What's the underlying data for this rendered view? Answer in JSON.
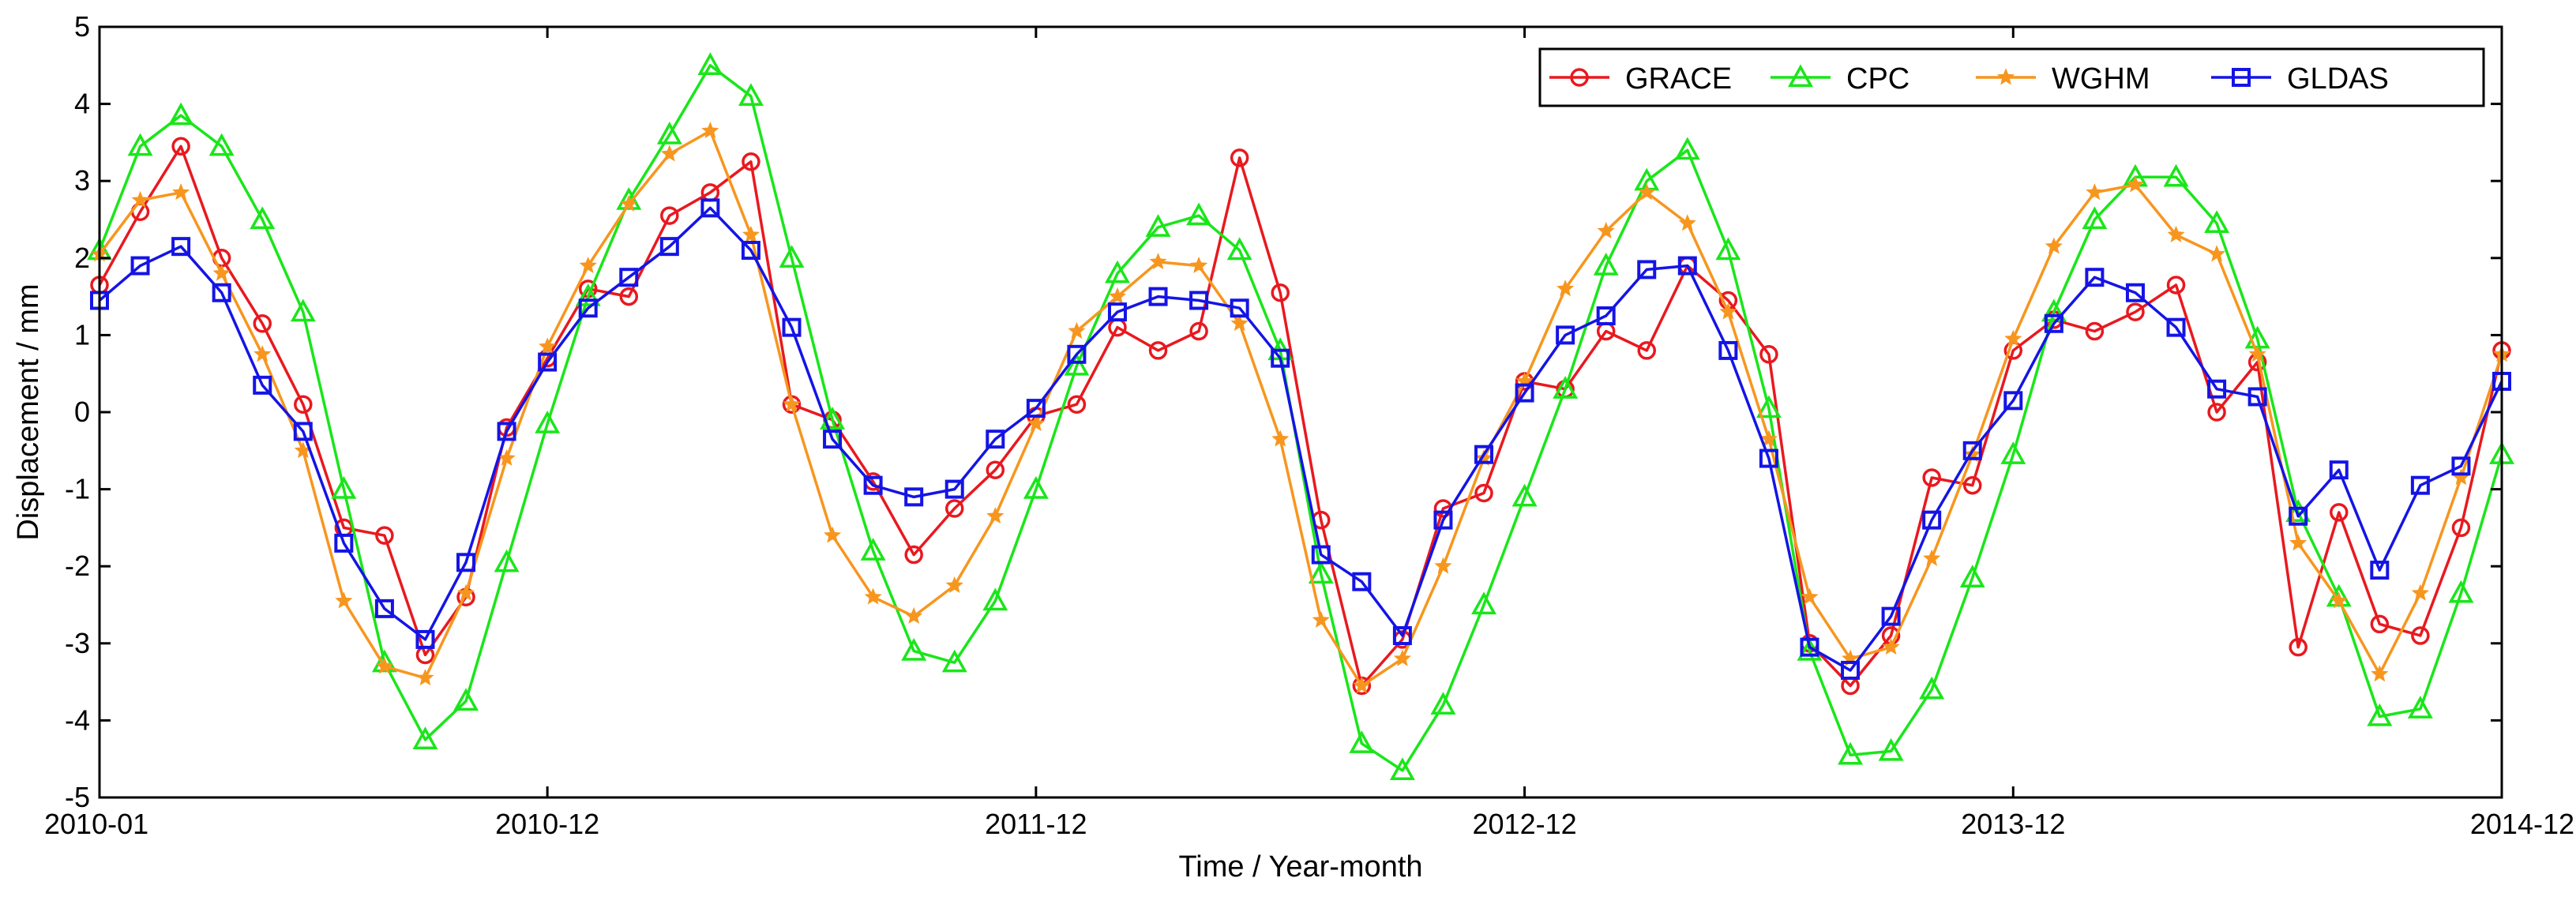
{
  "chart_data": {
    "type": "line",
    "title": "",
    "xlabel": "Time / Year-month",
    "ylabel": "Displacement / mm",
    "ylim": [
      -5,
      5
    ],
    "xlim": [
      0,
      59
    ],
    "grid": false,
    "legend_position": "top-right",
    "x_ticks": [
      {
        "index": 0,
        "label": "2010-01"
      },
      {
        "index": 11,
        "label": "2010-12"
      },
      {
        "index": 23,
        "label": "2011-12"
      },
      {
        "index": 35,
        "label": "2012-12"
      },
      {
        "index": 47,
        "label": "2013-12"
      },
      {
        "index": 59,
        "label": "2014-12"
      }
    ],
    "y_ticks": [
      -5,
      -4,
      -3,
      -2,
      -1,
      0,
      1,
      2,
      3,
      4,
      5
    ],
    "series": [
      {
        "name": "GRACE",
        "color": "#e8191f",
        "marker": "circle",
        "values": [
          1.65,
          2.6,
          3.45,
          2.0,
          1.15,
          0.1,
          -1.5,
          -1.6,
          -3.15,
          -2.4,
          -0.2,
          0.7,
          1.6,
          1.5,
          2.55,
          2.85,
          3.25,
          0.1,
          -0.1,
          -0.9,
          -1.85,
          -1.25,
          -0.75,
          -0.05,
          0.1,
          1.1,
          0.8,
          1.05,
          3.3,
          1.55,
          -1.4,
          -3.55,
          -2.95,
          -1.25,
          -1.05,
          0.4,
          0.3,
          1.05,
          0.8,
          1.9,
          1.45,
          0.75,
          -3.0,
          -3.55,
          -2.9,
          -0.85,
          -0.95,
          0.8,
          1.2,
          1.05,
          1.3,
          1.65,
          0.0,
          0.65,
          -3.05,
          -1.3,
          -2.75,
          -2.9,
          -1.5,
          0.8
        ]
      },
      {
        "name": "CPC",
        "color": "#19e619",
        "marker": "triangle",
        "values": [
          2.1,
          3.45,
          3.85,
          3.45,
          2.5,
          1.3,
          -1.0,
          -3.25,
          -4.25,
          -3.75,
          -1.95,
          -0.15,
          1.5,
          2.75,
          3.6,
          4.5,
          4.1,
          2.0,
          -0.1,
          -1.8,
          -3.1,
          -3.25,
          -2.45,
          -1.0,
          0.6,
          1.8,
          2.4,
          2.55,
          2.1,
          0.8,
          -2.1,
          -4.3,
          -4.65,
          -3.8,
          -2.5,
          -1.1,
          0.3,
          1.9,
          3.0,
          3.4,
          2.1,
          0.05,
          -3.1,
          -4.45,
          -4.4,
          -3.6,
          -2.15,
          -0.55,
          1.3,
          2.5,
          3.05,
          3.05,
          2.45,
          0.95,
          -1.3,
          -2.4,
          -3.95,
          -3.85,
          -2.35,
          -0.55
        ]
      },
      {
        "name": "WGHM",
        "color": "#f7961e",
        "marker": "star",
        "values": [
          2.05,
          2.75,
          2.85,
          1.8,
          0.75,
          -0.5,
          -2.45,
          -3.3,
          -3.45,
          -2.35,
          -0.6,
          0.85,
          1.9,
          2.7,
          3.35,
          3.65,
          2.3,
          0.1,
          -1.6,
          -2.4,
          -2.65,
          -2.25,
          -1.35,
          -0.15,
          1.05,
          1.5,
          1.95,
          1.9,
          1.15,
          -0.35,
          -2.7,
          -3.55,
          -3.2,
          -2.0,
          -0.6,
          0.4,
          1.6,
          2.35,
          2.85,
          2.45,
          1.3,
          -0.35,
          -2.4,
          -3.2,
          -3.05,
          -1.9,
          -0.55,
          0.95,
          2.15,
          2.85,
          2.95,
          2.3,
          2.05,
          0.75,
          -1.7,
          -2.45,
          -3.4,
          -2.35,
          -0.85,
          0.75
        ]
      },
      {
        "name": "GLDAS",
        "color": "#1414e6",
        "marker": "square",
        "values": [
          1.45,
          1.9,
          2.15,
          1.55,
          0.35,
          -0.25,
          -1.7,
          -2.55,
          -2.95,
          -1.95,
          -0.25,
          0.65,
          1.35,
          1.75,
          2.15,
          2.65,
          2.1,
          1.1,
          -0.35,
          -0.95,
          -1.1,
          -1.0,
          -0.35,
          0.05,
          0.75,
          1.3,
          1.5,
          1.45,
          1.35,
          0.7,
          -1.85,
          -2.2,
          -2.9,
          -1.4,
          -0.55,
          0.25,
          1.0,
          1.25,
          1.85,
          1.9,
          0.8,
          -0.6,
          -3.05,
          -3.35,
          -2.65,
          -1.4,
          -0.5,
          0.15,
          1.15,
          1.75,
          1.55,
          1.1,
          0.3,
          0.2,
          -1.35,
          -0.75,
          -2.05,
          -0.95,
          -0.7,
          0.4
        ]
      }
    ]
  }
}
